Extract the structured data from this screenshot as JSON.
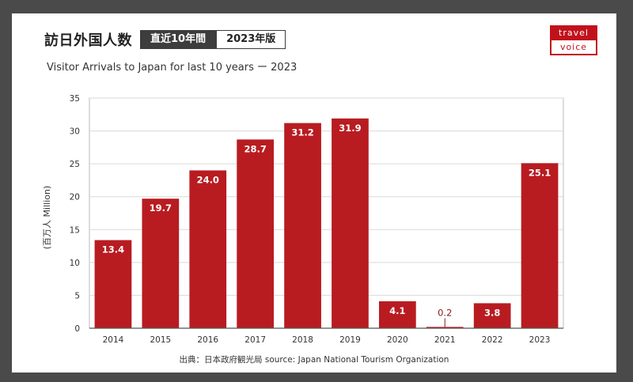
{
  "header": {
    "title": "訪日外国人数",
    "tag_period": "直近10年間",
    "tag_edition": "2023年版",
    "subtitle": "Visitor Arrivals to Japan for last 10 years ー 2023"
  },
  "logo": {
    "line1": "travel",
    "line2": "voice"
  },
  "source": "出典：日本政府観光局  source: Japan National Tourism Organization",
  "colors": {
    "bar": "#b81c21",
    "low_label": "#8a1a1e",
    "grid": "#d9d9d9",
    "axis": "#555555"
  },
  "chart_data": {
    "type": "bar",
    "title": "",
    "xlabel": "",
    "ylabel": "(百万人 Million)",
    "categories": [
      "2014",
      "2015",
      "2016",
      "2017",
      "2018",
      "2019",
      "2020",
      "2021",
      "2022",
      "2023"
    ],
    "values": [
      13.4,
      19.7,
      24.0,
      28.7,
      31.2,
      31.9,
      4.1,
      0.2,
      3.8,
      25.1
    ],
    "value_labels": [
      "13.4",
      "19.7",
      "24.0",
      "28.7",
      "31.2",
      "31.9",
      "4.1",
      "0.2",
      "3.8",
      "25.1"
    ],
    "ylim": [
      0,
      35
    ],
    "yticks": [
      0,
      5,
      10,
      15,
      20,
      25,
      30,
      35
    ],
    "grid": true,
    "legend": "none"
  }
}
